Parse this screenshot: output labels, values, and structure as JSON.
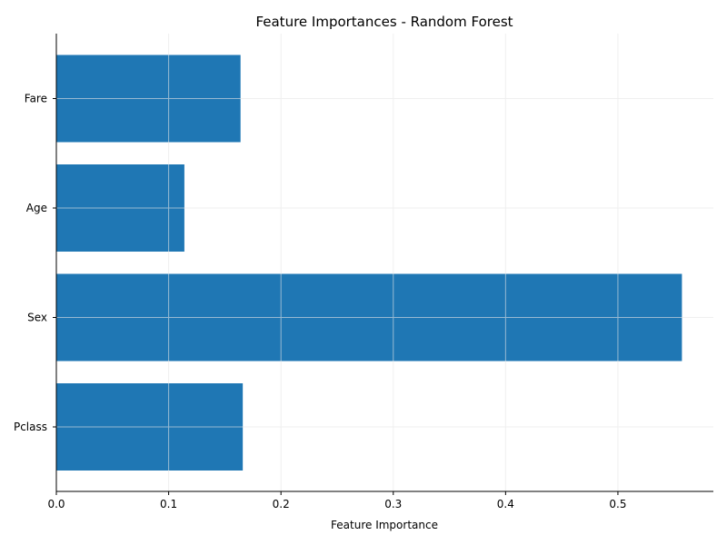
{
  "chart_data": {
    "type": "bar",
    "orientation": "horizontal",
    "title": "Feature Importances - Random Forest",
    "xlabel": "Feature Importance",
    "ylabel": "",
    "categories": [
      "Pclass",
      "Sex",
      "Age",
      "Fare"
    ],
    "values": [
      0.166,
      0.557,
      0.114,
      0.164
    ],
    "xlim": [
      0,
      0.585
    ],
    "xticks": [
      0.0,
      0.1,
      0.2,
      0.3,
      0.4,
      0.5
    ],
    "xtick_labels": [
      "0.0",
      "0.1",
      "0.2",
      "0.3",
      "0.4",
      "0.5"
    ],
    "grid": true,
    "bar_color": "#1f77b4"
  }
}
